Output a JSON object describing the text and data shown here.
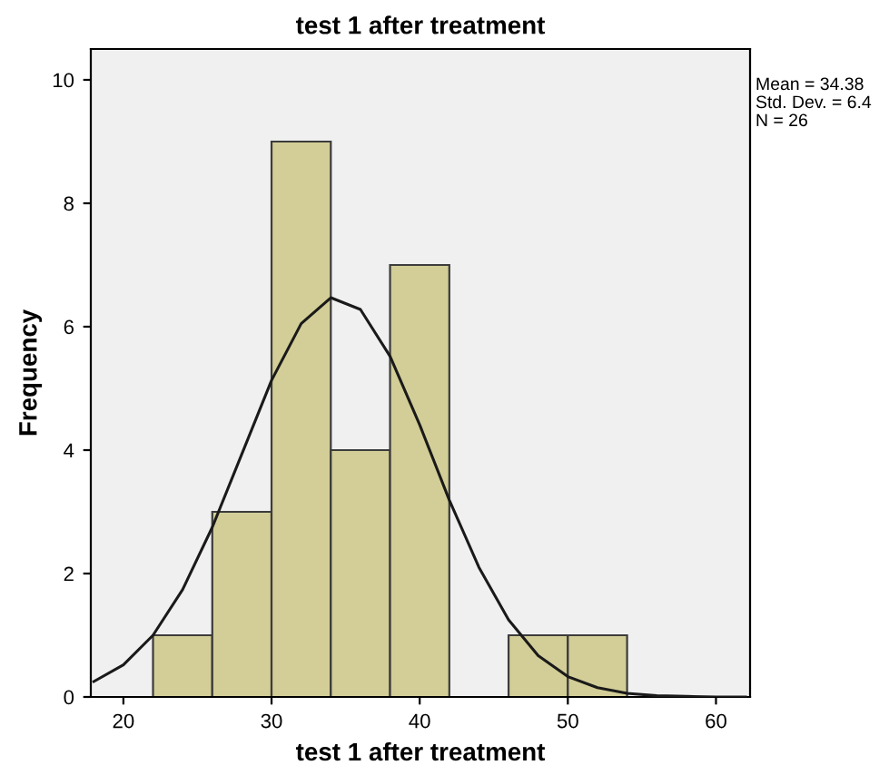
{
  "chart_data": {
    "type": "histogram",
    "title": "test 1 after treatment",
    "xlabel": "test 1 after treatment",
    "ylabel": "Frequency",
    "bins": [
      22,
      26,
      30,
      34,
      38,
      42,
      46,
      50,
      54
    ],
    "values": [
      1,
      3,
      9,
      4,
      7,
      0,
      1,
      1
    ],
    "color": "#d3ce97",
    "series": [
      {
        "type": "line",
        "color": "#1a1a1a",
        "x": [
          18,
          20,
          22,
          24,
          26,
          28,
          30,
          32,
          34,
          36,
          38,
          40,
          42,
          44,
          46,
          48,
          50,
          52,
          54,
          56,
          58,
          60,
          62
        ],
        "values": [
          0.25,
          0.52,
          1.0,
          1.74,
          2.75,
          3.94,
          5.13,
          6.05,
          6.47,
          6.28,
          5.52,
          4.41,
          3.19,
          2.1,
          1.25,
          0.67,
          0.33,
          0.15,
          0.06,
          0.02,
          0.01,
          0.0,
          0.0
        ]
      }
    ],
    "xlim": [
      17.8,
      62.3
    ],
    "xticks": [
      20,
      30,
      40,
      50,
      60
    ],
    "ylim": [
      0,
      10.5
    ],
    "yticks": [
      0,
      2,
      4,
      6,
      8,
      10
    ],
    "grid": false,
    "legend": false,
    "marker": "none",
    "line_style": "solid",
    "annotations": [
      "Mean = 34.38",
      "Std. Dev. = 6.4",
      "N = 26"
    ]
  }
}
